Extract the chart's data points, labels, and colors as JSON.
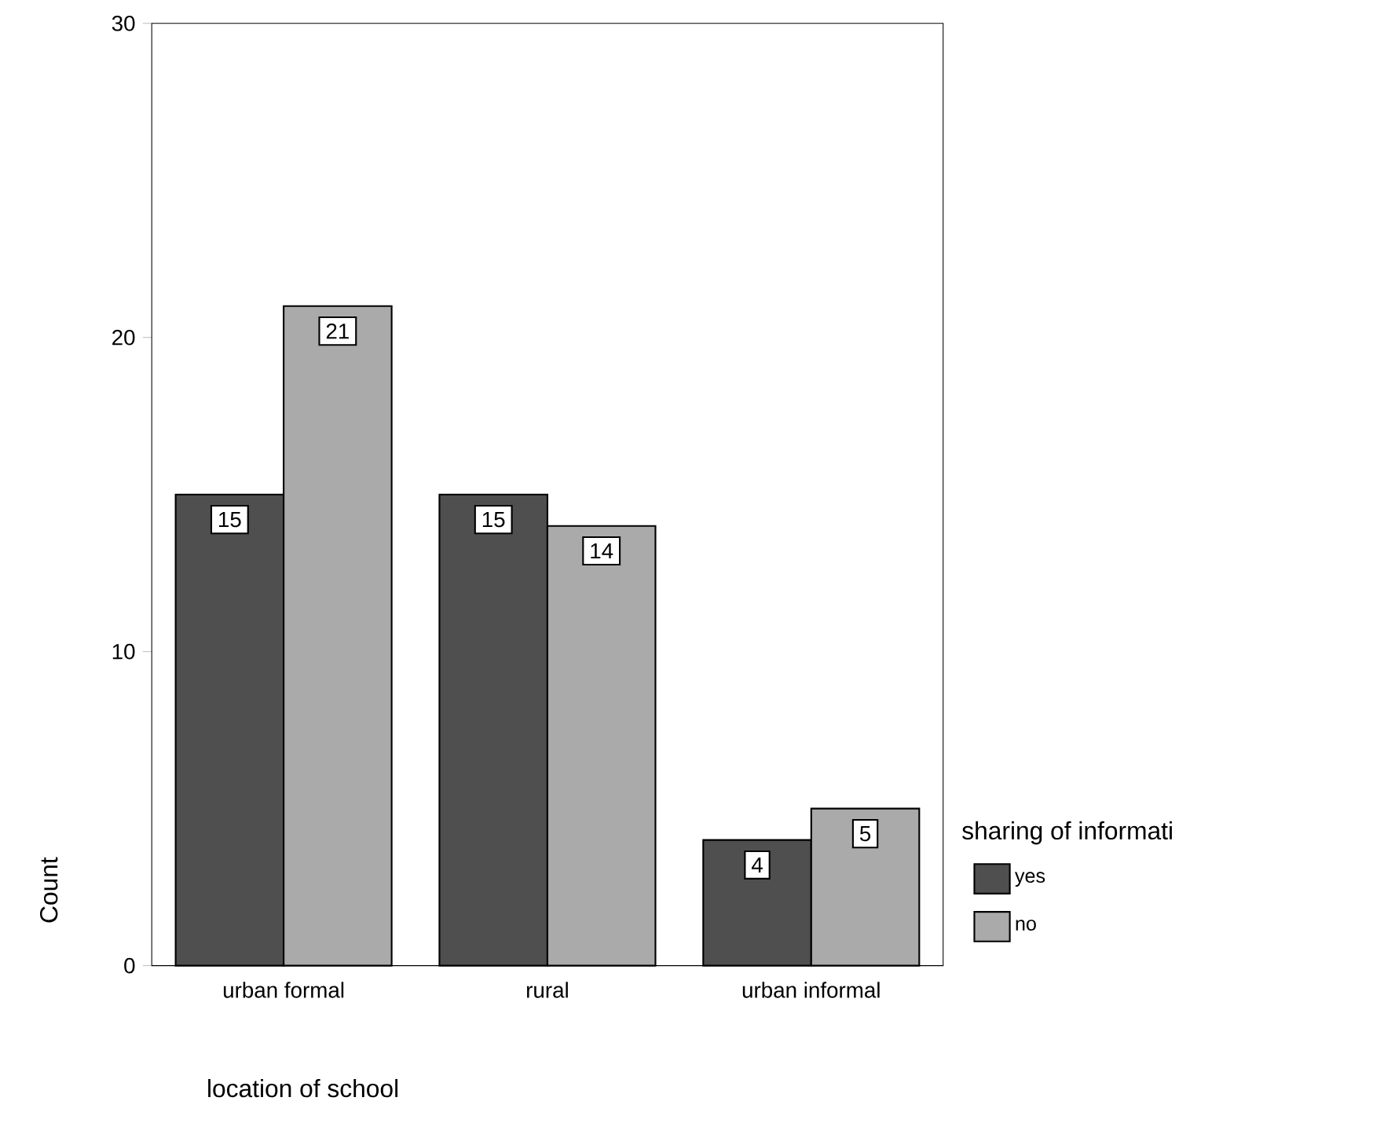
{
  "chart_data": {
    "type": "bar",
    "xlabel": "location of school",
    "ylabel": "Count",
    "legend_title": "sharing of informati",
    "categories": [
      "urban formal",
      "rural",
      "urban informal"
    ],
    "series": [
      {
        "name": "yes",
        "color": "#4f4f4f",
        "values": [
          15,
          15,
          4
        ]
      },
      {
        "name": "no",
        "color": "#aaaaaa",
        "values": [
          21,
          14,
          5
        ]
      }
    ],
    "ylim": [
      0,
      30
    ],
    "yticks": [
      0,
      10,
      20,
      30
    ],
    "grid": false,
    "legend": "right",
    "data_labels": true
  }
}
